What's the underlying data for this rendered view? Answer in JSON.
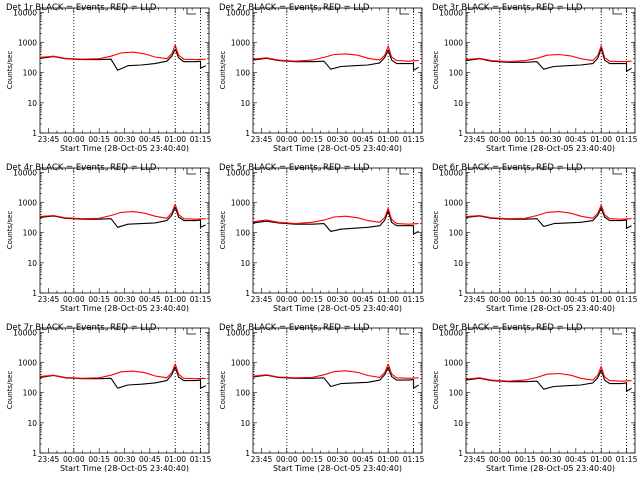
{
  "chart_data": [
    {
      "type": "line",
      "title": "Det 1r BLACK = Events, RED = LLD",
      "xlabel": "Start Time (28-Oct-05 23:40:40)",
      "ylabel": "Counts/sec",
      "yscale": "log",
      "ylim": [
        1,
        15000
      ],
      "xlim": [
        "23:40",
        "01:20"
      ],
      "xticks": [
        "23:45",
        "00:00",
        "00:15",
        "00:30",
        "00:45",
        "01:00",
        "01:15"
      ],
      "yticks": [
        "1",
        "10",
        "100",
        "1000",
        "10000"
      ],
      "grid": false,
      "series": [
        {
          "color": "#000000",
          "x": [
            "23:40",
            "23:48",
            "23:55",
            "00:05",
            "00:15",
            "00:22",
            "00:26",
            "00:32",
            "00:40",
            "00:48",
            "00:55",
            "00:58",
            "01:00",
            "01:02",
            "01:05",
            "01:12",
            "01:15",
            "01:15",
            "01:18"
          ],
          "y": [
            300,
            340,
            290,
            270,
            270,
            280,
            120,
            170,
            180,
            200,
            240,
            350,
            600,
            310,
            230,
            230,
            240,
            140,
            170
          ]
        },
        {
          "color": "#ff0000",
          "x": [
            "23:40",
            "23:48",
            "23:55",
            "00:05",
            "00:15",
            "00:22",
            "00:28",
            "00:35",
            "00:42",
            "00:48",
            "00:55",
            "00:58",
            "01:00",
            "01:02",
            "01:05",
            "01:12",
            "01:18"
          ],
          "y": [
            320,
            350,
            300,
            280,
            290,
            350,
            450,
            480,
            420,
            330,
            290,
            420,
            820,
            380,
            280,
            270,
            280
          ]
        }
      ]
    },
    {
      "type": "line",
      "title": "Det 2r BLACK = Events, RED = LLD",
      "xlabel": "Start Time (28-Oct-05 23:40:40)",
      "ylabel": "Counts/sec",
      "yscale": "log",
      "ylim": [
        1,
        15000
      ],
      "xlim": [
        "23:40",
        "01:20"
      ],
      "xticks": [
        "23:45",
        "00:00",
        "00:15",
        "00:30",
        "00:45",
        "01:00",
        "01:15"
      ],
      "yticks": [
        "1",
        "10",
        "100",
        "1000",
        "10000"
      ],
      "grid": false,
      "series": [
        {
          "color": "#000000",
          "x": [
            "23:40",
            "23:48",
            "23:55",
            "00:05",
            "00:15",
            "00:22",
            "00:26",
            "00:32",
            "00:40",
            "00:48",
            "00:55",
            "00:58",
            "01:00",
            "01:02",
            "01:05",
            "01:12",
            "01:15",
            "01:15",
            "01:18"
          ],
          "y": [
            260,
            300,
            250,
            230,
            230,
            240,
            130,
            160,
            170,
            180,
            210,
            320,
            560,
            260,
            200,
            200,
            200,
            120,
            150
          ]
        },
        {
          "color": "#ff0000",
          "x": [
            "23:40",
            "23:48",
            "23:55",
            "00:05",
            "00:15",
            "00:22",
            "00:28",
            "00:35",
            "00:42",
            "00:48",
            "00:55",
            "00:58",
            "01:00",
            "01:02",
            "01:05",
            "01:12",
            "01:18"
          ],
          "y": [
            280,
            310,
            260,
            240,
            260,
            320,
            400,
            420,
            380,
            300,
            260,
            380,
            760,
            330,
            250,
            240,
            250
          ]
        }
      ]
    },
    {
      "type": "line",
      "title": "Det 3r BLACK = Events, RED = LLD",
      "xlabel": "Start Time (28-Oct-05 23:40:40)",
      "ylabel": "Counts/sec",
      "yscale": "log",
      "ylim": [
        1,
        15000
      ],
      "xlim": [
        "23:40",
        "01:20"
      ],
      "xticks": [
        "23:45",
        "00:00",
        "00:15",
        "00:30",
        "00:45",
        "01:00",
        "01:15"
      ],
      "yticks": [
        "1",
        "10",
        "100",
        "1000",
        "10000"
      ],
      "grid": false,
      "series": [
        {
          "color": "#000000",
          "x": [
            "23:40",
            "23:48",
            "23:55",
            "00:05",
            "00:15",
            "00:22",
            "00:26",
            "00:32",
            "00:40",
            "00:48",
            "00:55",
            "00:58",
            "01:00",
            "01:02",
            "01:05",
            "01:12",
            "01:15",
            "01:15",
            "01:18"
          ],
          "y": [
            250,
            290,
            240,
            220,
            220,
            230,
            130,
            160,
            170,
            180,
            200,
            300,
            640,
            260,
            200,
            200,
            200,
            110,
            140
          ]
        },
        {
          "color": "#ff0000",
          "x": [
            "23:40",
            "23:48",
            "23:55",
            "00:05",
            "00:15",
            "00:22",
            "00:28",
            "00:35",
            "00:42",
            "00:48",
            "00:55",
            "00:58",
            "01:00",
            "01:02",
            "01:05",
            "01:12",
            "01:18"
          ],
          "y": [
            270,
            300,
            250,
            230,
            250,
            300,
            380,
            400,
            360,
            290,
            250,
            370,
            780,
            320,
            240,
            230,
            240
          ]
        }
      ]
    },
    {
      "type": "line",
      "title": "Det 4r BLACK = Events, RED = LLD",
      "xlabel": "Start Time (28-Oct-05 23:40:40)",
      "ylabel": "Counts/sec",
      "yscale": "log",
      "ylim": [
        1,
        15000
      ],
      "xlim": [
        "23:40",
        "01:20"
      ],
      "xticks": [
        "23:45",
        "00:00",
        "00:15",
        "00:30",
        "00:45",
        "01:00",
        "01:15"
      ],
      "yticks": [
        "1",
        "10",
        "100",
        "1000",
        "10000"
      ],
      "grid": false,
      "series": [
        {
          "color": "#000000",
          "x": [
            "23:40",
            "23:48",
            "23:55",
            "00:05",
            "00:15",
            "00:22",
            "00:26",
            "00:32",
            "00:40",
            "00:48",
            "00:55",
            "00:58",
            "01:00",
            "01:02",
            "01:05",
            "01:12",
            "01:15",
            "01:15",
            "01:18"
          ],
          "y": [
            320,
            360,
            300,
            280,
            280,
            290,
            150,
            190,
            200,
            210,
            250,
            380,
            700,
            330,
            250,
            250,
            260,
            150,
            180
          ]
        },
        {
          "color": "#ff0000",
          "x": [
            "23:40",
            "23:48",
            "23:55",
            "00:05",
            "00:15",
            "00:22",
            "00:28",
            "00:35",
            "00:42",
            "00:48",
            "00:55",
            "00:58",
            "01:00",
            "01:02",
            "01:05",
            "01:12",
            "01:18"
          ],
          "y": [
            340,
            370,
            310,
            290,
            300,
            370,
            470,
            500,
            440,
            350,
            300,
            450,
            880,
            400,
            290,
            280,
            290
          ]
        }
      ]
    },
    {
      "type": "line",
      "title": "Det 5r BLACK = Events, RED = LLD",
      "xlabel": "Start Time (28-Oct-05 23:40:40)",
      "ylabel": "Counts/sec",
      "yscale": "log",
      "ylim": [
        1,
        15000
      ],
      "xlim": [
        "23:40",
        "01:20"
      ],
      "xticks": [
        "23:45",
        "00:00",
        "00:15",
        "00:30",
        "00:45",
        "01:00",
        "01:15"
      ],
      "yticks": [
        "1",
        "10",
        "100",
        "1000",
        "10000"
      ],
      "grid": false,
      "series": [
        {
          "color": "#000000",
          "x": [
            "23:40",
            "23:48",
            "23:55",
            "00:05",
            "00:15",
            "00:22",
            "00:26",
            "00:32",
            "00:40",
            "00:48",
            "00:55",
            "00:58",
            "01:00",
            "01:02",
            "01:05",
            "01:12",
            "01:15",
            "01:15",
            "01:18"
          ],
          "y": [
            210,
            240,
            210,
            190,
            190,
            200,
            110,
            130,
            140,
            150,
            170,
            260,
            520,
            220,
            170,
            170,
            170,
            90,
            110
          ]
        },
        {
          "color": "#ff0000",
          "x": [
            "23:40",
            "23:48",
            "23:55",
            "00:05",
            "00:15",
            "00:22",
            "00:28",
            "00:35",
            "00:42",
            "00:48",
            "00:55",
            "00:58",
            "01:00",
            "01:02",
            "01:05",
            "01:12",
            "01:18"
          ],
          "y": [
            230,
            260,
            220,
            200,
            220,
            260,
            330,
            350,
            310,
            250,
            220,
            320,
            640,
            270,
            200,
            190,
            200
          ]
        }
      ]
    },
    {
      "type": "line",
      "title": "Det 6r BLACK = Events, RED = LLD",
      "xlabel": "Start Time (28-Oct-05 23:40:40)",
      "ylabel": "Counts/sec",
      "yscale": "log",
      "ylim": [
        1,
        15000
      ],
      "xlim": [
        "23:40",
        "01:20"
      ],
      "xticks": [
        "23:45",
        "00:00",
        "00:15",
        "00:30",
        "00:45",
        "01:00",
        "01:15"
      ],
      "yticks": [
        "1",
        "10",
        "100",
        "1000",
        "10000"
      ],
      "grid": false,
      "series": [
        {
          "color": "#000000",
          "x": [
            "23:40",
            "23:48",
            "23:55",
            "00:05",
            "00:15",
            "00:22",
            "00:26",
            "00:32",
            "00:40",
            "00:48",
            "00:55",
            "00:58",
            "01:00",
            "01:02",
            "01:05",
            "01:12",
            "01:15",
            "01:15",
            "01:18"
          ],
          "y": [
            320,
            360,
            300,
            280,
            280,
            290,
            160,
            200,
            210,
            220,
            250,
            380,
            640,
            330,
            250,
            250,
            260,
            140,
            170
          ]
        },
        {
          "color": "#ff0000",
          "x": [
            "23:40",
            "23:48",
            "23:55",
            "00:05",
            "00:15",
            "00:22",
            "00:28",
            "00:35",
            "00:42",
            "00:48",
            "00:55",
            "00:58",
            "01:00",
            "01:02",
            "01:05",
            "01:12",
            "01:18"
          ],
          "y": [
            340,
            370,
            310,
            290,
            300,
            370,
            470,
            500,
            440,
            350,
            300,
            440,
            820,
            390,
            290,
            280,
            290
          ]
        }
      ]
    },
    {
      "type": "line",
      "title": "Det 7r BLACK = Events, RED = LLD",
      "xlabel": "Start Time (28-Oct-05 23:40:40)",
      "ylabel": "Counts/sec",
      "yscale": "log",
      "ylim": [
        1,
        15000
      ],
      "xlim": [
        "23:40",
        "01:20"
      ],
      "xticks": [
        "23:45",
        "00:00",
        "00:15",
        "00:30",
        "00:45",
        "01:00",
        "01:15"
      ],
      "yticks": [
        "1",
        "10",
        "100",
        "1000",
        "10000"
      ],
      "grid": false,
      "series": [
        {
          "color": "#000000",
          "x": [
            "23:40",
            "23:48",
            "23:55",
            "00:05",
            "00:15",
            "00:22",
            "00:26",
            "00:32",
            "00:40",
            "00:48",
            "00:55",
            "00:58",
            "01:00",
            "01:02",
            "01:05",
            "01:12",
            "01:15",
            "01:15",
            "01:18"
          ],
          "y": [
            320,
            370,
            310,
            290,
            290,
            300,
            140,
            180,
            190,
            210,
            250,
            390,
            700,
            330,
            250,
            250,
            260,
            140,
            170
          ]
        },
        {
          "color": "#ff0000",
          "x": [
            "23:40",
            "23:48",
            "23:55",
            "00:05",
            "00:15",
            "00:22",
            "00:28",
            "00:35",
            "00:42",
            "00:48",
            "00:55",
            "00:58",
            "01:00",
            "01:02",
            "01:05",
            "01:12",
            "01:18"
          ],
          "y": [
            340,
            380,
            320,
            300,
            310,
            380,
            490,
            520,
            460,
            360,
            310,
            460,
            900,
            410,
            300,
            290,
            300
          ]
        }
      ]
    },
    {
      "type": "line",
      "title": "Det 8r BLACK = Events, RED = LLD",
      "xlabel": "Start Time (28-Oct-05 23:40:40)",
      "ylabel": "Counts/sec",
      "yscale": "log",
      "ylim": [
        1,
        15000
      ],
      "xlim": [
        "23:40",
        "01:20"
      ],
      "xticks": [
        "23:45",
        "00:00",
        "00:15",
        "00:30",
        "00:45",
        "01:00",
        "01:15"
      ],
      "yticks": [
        "1",
        "10",
        "100",
        "1000",
        "10000"
      ],
      "grid": false,
      "series": [
        {
          "color": "#000000",
          "x": [
            "23:40",
            "23:48",
            "23:55",
            "00:05",
            "00:15",
            "00:22",
            "00:26",
            "00:32",
            "00:40",
            "00:48",
            "00:55",
            "00:58",
            "01:00",
            "01:02",
            "01:05",
            "01:12",
            "01:15",
            "01:15",
            "01:18"
          ],
          "y": [
            330,
            380,
            320,
            300,
            300,
            310,
            160,
            200,
            210,
            220,
            260,
            400,
            680,
            340,
            260,
            260,
            270,
            140,
            180
          ]
        },
        {
          "color": "#ff0000",
          "x": [
            "23:40",
            "23:48",
            "23:55",
            "00:05",
            "00:15",
            "00:22",
            "00:28",
            "00:35",
            "00:42",
            "00:48",
            "00:55",
            "00:58",
            "01:00",
            "01:02",
            "01:05",
            "01:12",
            "01:18"
          ],
          "y": [
            350,
            390,
            330,
            310,
            320,
            390,
            500,
            530,
            470,
            370,
            320,
            470,
            880,
            420,
            310,
            300,
            310
          ]
        }
      ]
    },
    {
      "type": "line",
      "title": "Det 9r BLACK = Events, RED = LLD",
      "xlabel": "Start Time (28-Oct-05 23:40:40)",
      "ylabel": "Counts/sec",
      "yscale": "log",
      "ylim": [
        1,
        15000
      ],
      "xlim": [
        "23:40",
        "01:20"
      ],
      "xticks": [
        "23:45",
        "00:00",
        "00:15",
        "00:30",
        "00:45",
        "01:00",
        "01:15"
      ],
      "yticks": [
        "1",
        "10",
        "100",
        "1000",
        "10000"
      ],
      "grid": false,
      "series": [
        {
          "color": "#000000",
          "x": [
            "23:40",
            "23:48",
            "23:55",
            "00:05",
            "00:15",
            "00:22",
            "00:26",
            "00:32",
            "00:40",
            "00:48",
            "00:55",
            "00:58",
            "01:00",
            "01:02",
            "01:05",
            "01:12",
            "01:15",
            "01:15",
            "01:18"
          ],
          "y": [
            260,
            300,
            250,
            230,
            230,
            240,
            130,
            160,
            170,
            180,
            210,
            310,
            560,
            260,
            200,
            200,
            210,
            110,
            140
          ]
        },
        {
          "color": "#ff0000",
          "x": [
            "23:40",
            "23:48",
            "23:55",
            "00:05",
            "00:15",
            "00:22",
            "00:28",
            "00:35",
            "00:42",
            "00:48",
            "00:55",
            "00:58",
            "01:00",
            "01:02",
            "01:05",
            "01:12",
            "01:18"
          ],
          "y": [
            280,
            310,
            260,
            240,
            260,
            320,
            410,
            430,
            380,
            300,
            260,
            380,
            740,
            330,
            250,
            240,
            250
          ]
        }
      ]
    }
  ]
}
